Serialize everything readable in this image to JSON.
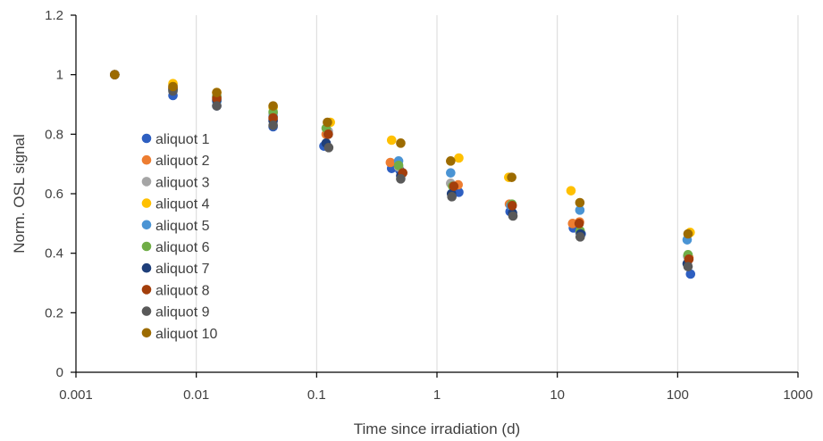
{
  "chart_data": {
    "type": "scatter",
    "title": "",
    "xlabel": "Time since irradiation (d)",
    "ylabel": "Norm. OSL signal",
    "x_scale": "log",
    "xlim": [
      0.001,
      1000
    ],
    "ylim": [
      0,
      1.2
    ],
    "x_ticks": [
      0.001,
      0.01,
      0.1,
      1,
      10,
      100,
      1000
    ],
    "x_tick_labels": [
      "0.001",
      "0.01",
      "0.1",
      "1",
      "10",
      "100",
      "1000"
    ],
    "y_ticks": [
      0,
      0.2,
      0.4,
      0.6,
      0.8,
      1.0,
      1.2
    ],
    "y_tick_labels": [
      "0",
      "0.2",
      "0.4",
      "0.6",
      "0.8",
      "1",
      "1.2"
    ],
    "grid": "vertical",
    "legend_position": "left",
    "series": [
      {
        "name": "aliquot 1",
        "color": "#2e5fc1",
        "x": [
          0.0021,
          0.0064,
          0.0148,
          0.0435,
          0.115,
          0.42,
          0.49,
          1.52,
          4.05,
          13.6,
          15.8,
          128
        ],
        "y": [
          1.0,
          0.93,
          0.895,
          0.825,
          0.76,
          0.685,
          0.68,
          0.605,
          0.54,
          0.485,
          0.465,
          0.33
        ]
      },
      {
        "name": "aliquot 2",
        "color": "#ed7d31",
        "x": [
          0.0021,
          0.0064,
          0.0148,
          0.0435,
          0.12,
          0.41,
          1.5,
          4.0,
          13.4,
          15.3,
          124
        ],
        "y": [
          1.0,
          0.96,
          0.925,
          0.85,
          0.8,
          0.705,
          0.63,
          0.565,
          0.5,
          0.505,
          0.385
        ]
      },
      {
        "name": "aliquot 3",
        "color": "#a5a5a5",
        "x": [
          0.0021,
          0.0064,
          0.0148,
          0.0435,
          0.125,
          0.48,
          1.3,
          4.2,
          15.4,
          121
        ],
        "y": [
          1.0,
          0.965,
          0.93,
          0.87,
          0.81,
          0.69,
          0.635,
          0.56,
          0.47,
          0.39
        ]
      },
      {
        "name": "aliquot 4",
        "color": "#ffc000",
        "x": [
          0.0021,
          0.0064,
          0.0148,
          0.0435,
          0.13,
          0.42,
          1.52,
          3.95,
          13.0,
          127
        ],
        "y": [
          1.0,
          0.97,
          0.94,
          0.89,
          0.84,
          0.78,
          0.72,
          0.655,
          0.61,
          0.47
        ]
      },
      {
        "name": "aliquot 5",
        "color": "#4a94d4",
        "x": [
          0.0021,
          0.0064,
          0.0148,
          0.0435,
          0.125,
          0.48,
          1.3,
          4.1,
          15.4,
          120
        ],
        "y": [
          1.0,
          0.955,
          0.91,
          0.86,
          0.8,
          0.71,
          0.67,
          0.56,
          0.545,
          0.445
        ]
      },
      {
        "name": "aliquot 6",
        "color": "#70ad47",
        "x": [
          0.0021,
          0.0064,
          0.0148,
          0.0435,
          0.12,
          0.48,
          1.35,
          4.2,
          15.5,
          122
        ],
        "y": [
          1.0,
          0.95,
          0.925,
          0.875,
          0.82,
          0.695,
          0.625,
          0.565,
          0.475,
          0.395
        ]
      },
      {
        "name": "aliquot 7",
        "color": "#1f3f7a",
        "x": [
          0.0021,
          0.0064,
          0.0148,
          0.0435,
          0.12,
          0.5,
          1.32,
          4.25,
          15.6,
          120
        ],
        "y": [
          1.0,
          0.95,
          0.915,
          0.845,
          0.77,
          0.66,
          0.6,
          0.535,
          0.465,
          0.365
        ]
      },
      {
        "name": "aliquot 8",
        "color": "#a33e0b",
        "x": [
          0.0021,
          0.0064,
          0.0148,
          0.0435,
          0.125,
          0.52,
          1.38,
          4.22,
          15.2,
          124
        ],
        "y": [
          1.0,
          0.955,
          0.92,
          0.855,
          0.8,
          0.67,
          0.625,
          0.56,
          0.5,
          0.38
        ]
      },
      {
        "name": "aliquot 9",
        "color": "#595959",
        "x": [
          0.0021,
          0.0064,
          0.0148,
          0.0435,
          0.126,
          0.5,
          1.33,
          4.28,
          15.5,
          122
        ],
        "y": [
          1.0,
          0.945,
          0.895,
          0.83,
          0.755,
          0.65,
          0.59,
          0.525,
          0.455,
          0.355
        ]
      },
      {
        "name": "aliquot 10",
        "color": "#9c6b00",
        "x": [
          0.0021,
          0.0064,
          0.0148,
          0.0435,
          0.123,
          0.5,
          1.3,
          4.18,
          15.4,
          122
        ],
        "y": [
          1.0,
          0.96,
          0.94,
          0.895,
          0.84,
          0.77,
          0.71,
          0.655,
          0.57,
          0.465
        ]
      }
    ]
  }
}
